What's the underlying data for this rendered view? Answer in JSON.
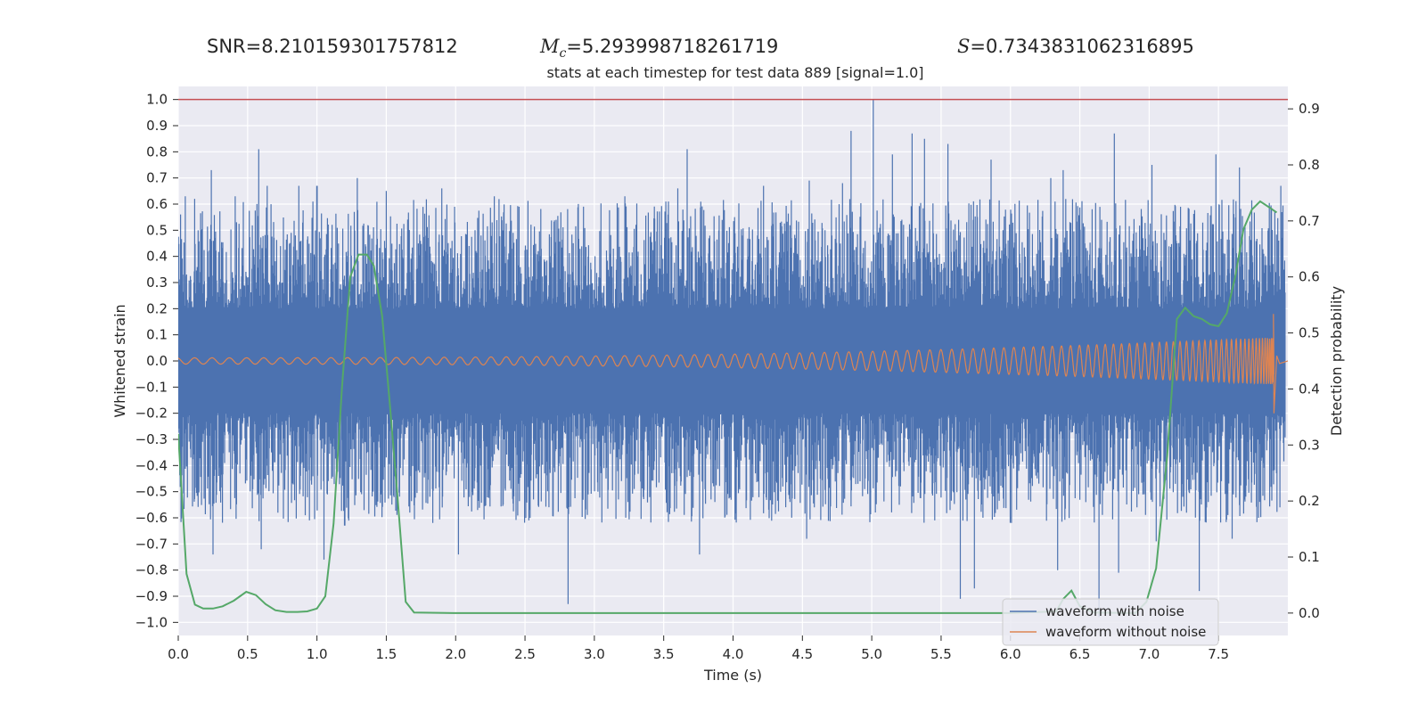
{
  "stats": {
    "snr_label": "SNR",
    "snr_value": "8.210159301757812",
    "mc_symbol": "M",
    "mc_subscript": "c",
    "mc_value": "5.293998718261719",
    "s_symbol": "S",
    "s_value": "0.7343831062316895"
  },
  "chart_data": {
    "type": "line",
    "subtitle": "stats at each timestep for test data 889 [signal=1.0]",
    "xlabel": "Time (s)",
    "ylabel_left": "Whitened strain",
    "ylabel_right": "Detection probability",
    "xlim": [
      0.0,
      8.0
    ],
    "ylim_left": [
      -1.05,
      1.05
    ],
    "ylim_right": [
      -0.04,
      0.94
    ],
    "xticks": [
      "0.0",
      "0.5",
      "1.0",
      "1.5",
      "2.0",
      "2.5",
      "3.0",
      "3.5",
      "4.0",
      "4.5",
      "5.0",
      "5.5",
      "6.0",
      "6.5",
      "7.0",
      "7.5"
    ],
    "yticks_left": [
      "1.0",
      "0.9",
      "0.8",
      "0.7",
      "0.6",
      "0.5",
      "0.4",
      "0.3",
      "0.2",
      "0.1",
      "0.0",
      "−0.1",
      "−0.2",
      "−0.3",
      "−0.4",
      "−0.5",
      "−0.6",
      "−0.7",
      "−0.8",
      "−0.9",
      "−1.0"
    ],
    "yticks_right": [
      "0.9",
      "0.8",
      "0.7",
      "0.6",
      "0.5",
      "0.4",
      "0.3",
      "0.2",
      "0.1",
      "0.0"
    ],
    "grid": true,
    "legend_position": "lower-right",
    "colors": {
      "noisy": "#4c72b0",
      "clean": "#dd8452",
      "probability": "#55a868",
      "threshold": "#c44e52",
      "background": "#eaeaf2"
    },
    "series": [
      {
        "name": "waveform with noise",
        "envelope_top_peaks": [
          [
            0.05,
            0.63
          ],
          [
            0.12,
            0.62
          ],
          [
            0.24,
            0.73
          ],
          [
            0.41,
            0.63
          ],
          [
            0.58,
            0.81
          ],
          [
            0.64,
            0.67
          ],
          [
            0.87,
            0.67
          ],
          [
            1.0,
            0.67
          ],
          [
            1.29,
            0.7
          ],
          [
            1.5,
            0.65
          ],
          [
            1.9,
            0.66
          ],
          [
            2.28,
            0.63
          ],
          [
            3.22,
            0.63
          ],
          [
            3.6,
            0.66
          ],
          [
            3.67,
            0.81
          ],
          [
            4.22,
            0.67
          ],
          [
            4.55,
            0.69
          ],
          [
            4.79,
            0.68
          ],
          [
            4.85,
            0.88
          ],
          [
            5.01,
            1.0
          ],
          [
            5.15,
            0.79
          ],
          [
            5.29,
            0.87
          ],
          [
            5.38,
            0.85
          ],
          [
            5.55,
            0.83
          ],
          [
            5.86,
            0.77
          ],
          [
            6.29,
            0.7
          ],
          [
            6.38,
            0.73
          ],
          [
            6.75,
            0.87
          ],
          [
            7.02,
            0.75
          ],
          [
            7.48,
            0.79
          ],
          [
            7.65,
            0.74
          ],
          [
            7.95,
            0.67
          ]
        ],
        "envelope_bottom_peaks": [
          [
            0.25,
            -0.74
          ],
          [
            0.6,
            -0.72
          ],
          [
            1.05,
            -0.76
          ],
          [
            1.2,
            -0.63
          ],
          [
            2.02,
            -0.74
          ],
          [
            2.81,
            -0.93
          ],
          [
            3.76,
            -0.74
          ],
          [
            4.53,
            -0.68
          ],
          [
            5.64,
            -0.91
          ],
          [
            5.74,
            -0.87
          ],
          [
            6.34,
            -0.8
          ],
          [
            6.64,
            -0.98
          ],
          [
            6.78,
            -0.81
          ],
          [
            7.05,
            -0.69
          ],
          [
            7.36,
            -0.88
          ],
          [
            7.6,
            -0.68
          ]
        ]
      },
      {
        "name": "waveform without noise",
        "amplitude_start": 0.012,
        "amplitude_end": 0.09,
        "merger_time": 7.9,
        "merger_peak": 0.18,
        "merger_trough": -0.2
      },
      {
        "name": "detection probability",
        "points": [
          [
            0.0,
            0.32
          ],
          [
            0.06,
            0.07
          ],
          [
            0.12,
            0.015
          ],
          [
            0.18,
            0.008
          ],
          [
            0.25,
            0.008
          ],
          [
            0.32,
            0.012
          ],
          [
            0.4,
            0.022
          ],
          [
            0.49,
            0.038
          ],
          [
            0.56,
            0.032
          ],
          [
            0.63,
            0.016
          ],
          [
            0.7,
            0.005
          ],
          [
            0.78,
            0.002
          ],
          [
            0.86,
            0.002
          ],
          [
            0.93,
            0.003
          ],
          [
            1.0,
            0.008
          ],
          [
            1.06,
            0.03
          ],
          [
            1.12,
            0.16
          ],
          [
            1.18,
            0.4
          ],
          [
            1.24,
            0.6
          ],
          [
            1.3,
            0.64
          ],
          [
            1.36,
            0.64
          ],
          [
            1.41,
            0.62
          ],
          [
            1.47,
            0.53
          ],
          [
            1.53,
            0.36
          ],
          [
            1.58,
            0.21
          ],
          [
            1.64,
            0.02
          ],
          [
            1.7,
            0.001
          ],
          [
            2.0,
            0.0
          ],
          [
            3.0,
            0.0
          ],
          [
            4.0,
            0.0
          ],
          [
            5.0,
            0.0
          ],
          [
            6.0,
            0.0
          ],
          [
            6.33,
            0.003
          ],
          [
            6.38,
            0.025
          ],
          [
            6.44,
            0.04
          ],
          [
            6.5,
            0.012
          ],
          [
            6.6,
            0.001
          ],
          [
            6.9,
            0.0
          ],
          [
            6.98,
            0.02
          ],
          [
            7.05,
            0.08
          ],
          [
            7.13,
            0.28
          ],
          [
            7.2,
            0.525
          ],
          [
            7.26,
            0.545
          ],
          [
            7.32,
            0.53
          ],
          [
            7.38,
            0.525
          ],
          [
            7.44,
            0.515
          ],
          [
            7.5,
            0.512
          ],
          [
            7.56,
            0.535
          ],
          [
            7.62,
            0.6
          ],
          [
            7.68,
            0.685
          ],
          [
            7.74,
            0.72
          ],
          [
            7.8,
            0.735
          ],
          [
            7.86,
            0.725
          ],
          [
            7.92,
            0.715
          ]
        ]
      }
    ],
    "threshold_line": 1.0
  }
}
